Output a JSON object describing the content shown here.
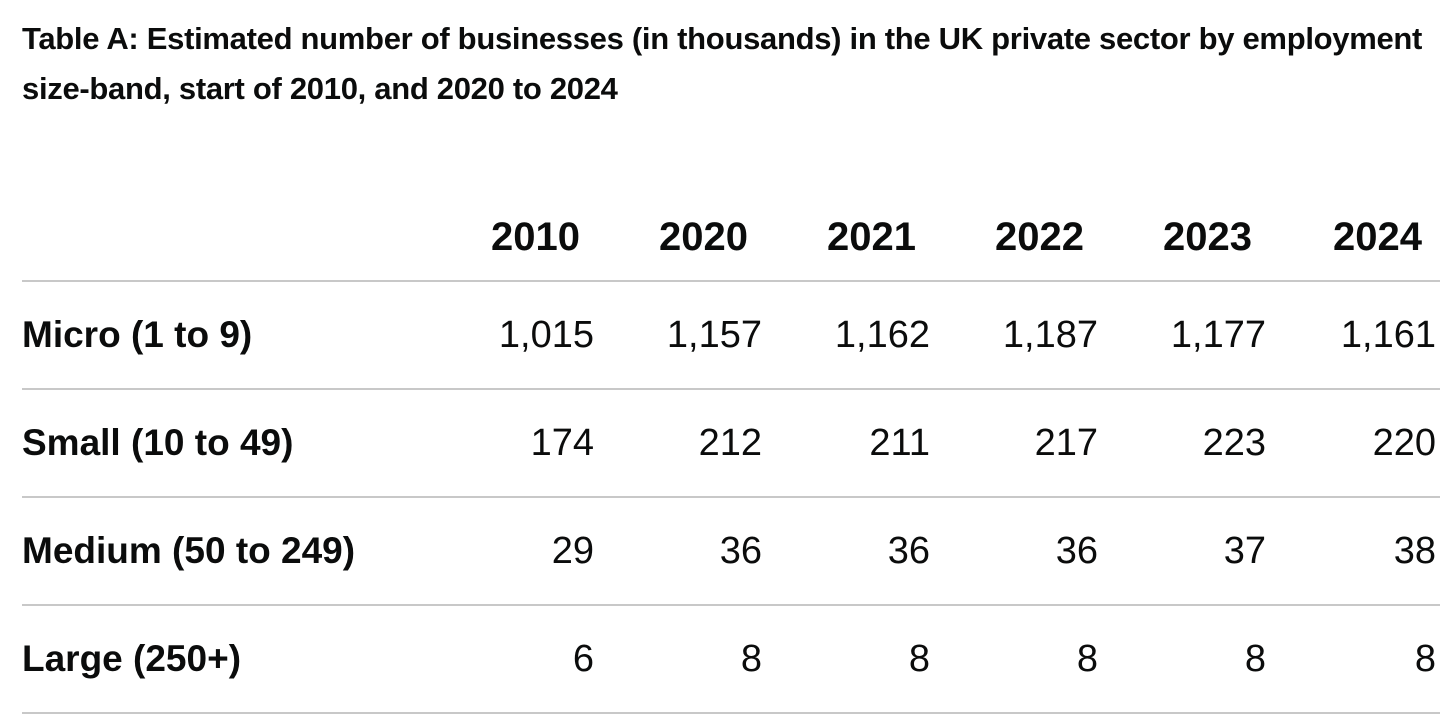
{
  "caption": "Table A: Estimated number of businesses (in thousands) in the UK private sector by employment size-band, start of 2010, and 2020 to 2024",
  "table": {
    "columns": [
      "2010",
      "2020",
      "2021",
      "2022",
      "2023",
      "2024"
    ],
    "rows": [
      {
        "label": "Micro (1 to 9)",
        "cells": [
          "1,015",
          "1,157",
          "1,162",
          "1,187",
          "1,177",
          "1,161"
        ]
      },
      {
        "label": "Small (10 to 49)",
        "cells": [
          "174",
          "212",
          "211",
          "217",
          "223",
          "220"
        ]
      },
      {
        "label": "Medium (50 to 249)",
        "cells": [
          "29",
          "36",
          "36",
          "36",
          "37",
          "38"
        ]
      },
      {
        "label": "Large (250+)",
        "cells": [
          "6",
          "8",
          "8",
          "8",
          "8",
          "8"
        ]
      }
    ]
  }
}
